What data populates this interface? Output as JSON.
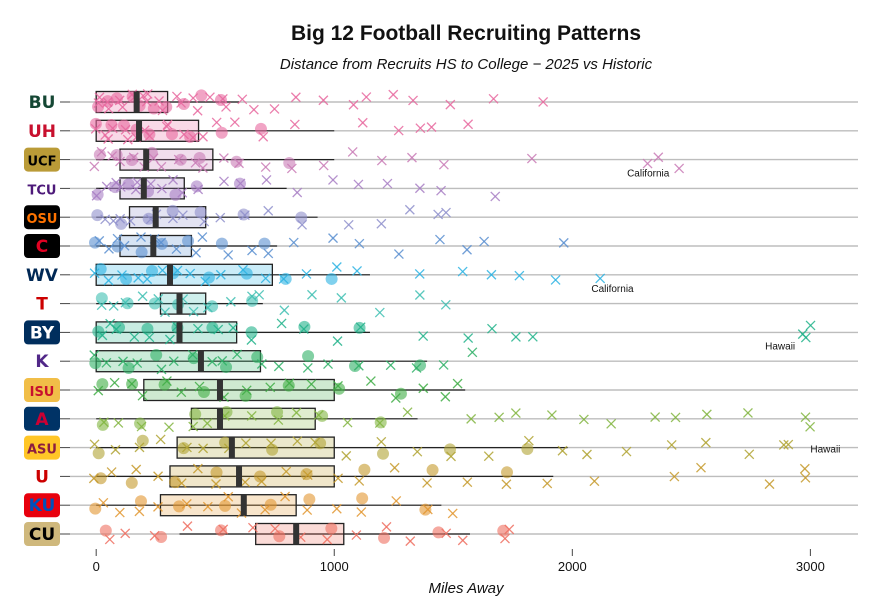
{
  "chart_data": {
    "type": "box",
    "title": "Big 12 Football Recruiting Patterns",
    "subtitle": "Distance from Recruits HS to College − 2025 vs Historic",
    "xlabel": "Miles Away",
    "xlim": [
      -110,
      3200
    ],
    "xticks": [
      0,
      1000,
      2000,
      3000
    ],
    "grid": "horizontal",
    "legend": "none",
    "categories": [
      "Baylor",
      "Houston",
      "UCF",
      "TCU",
      "Oklahoma State",
      "Cincinnati",
      "West Virginia",
      "Texas Tech",
      "BYU",
      "Kansas State",
      "Iowa State",
      "Arizona",
      "Arizona State",
      "Utah",
      "Kansas",
      "Colorado"
    ],
    "series": [
      {
        "color": "#e8689f",
        "logo": {
          "text": "BU",
          "color": "#154734",
          "bg": "#ffffff"
        },
        "box": {
          "min": 0,
          "q1": 0,
          "median": 170,
          "q3": 300,
          "max": 600
        },
        "points": [
          10,
          30,
          50,
          70,
          95,
          120,
          145,
          160,
          190,
          210,
          230,
          260,
          280,
          320,
          360,
          400,
          440,
          480,
          530,
          560
        ],
        "outliers": [
          620,
          680,
          760,
          840,
          950,
          1070,
          1150,
          1250,
          1350,
          1480,
          1650,
          1880
        ]
      },
      {
        "color": "#e8689f",
        "logo": {
          "text": "UH",
          "color": "#c8102e",
          "bg": "#ffffff"
        },
        "box": {
          "min": 0,
          "q1": 0,
          "median": 180,
          "q3": 430,
          "max": 1000
        },
        "points": [
          10,
          30,
          60,
          90,
          120,
          150,
          170,
          200,
          240,
          280,
          320,
          360,
          400,
          460,
          520,
          600,
          700,
          820
        ],
        "outliers": [
          1120,
          1280,
          1380,
          1420,
          1550
        ]
      },
      {
        "color": "#c97bb6",
        "logo": {
          "text": "UCF",
          "color": "#000000",
          "bg": "#ba9b37"
        },
        "box": {
          "min": 0,
          "q1": 100,
          "median": 210,
          "q3": 490,
          "max": 1000
        },
        "points": [
          10,
          40,
          80,
          120,
          160,
          200,
          240,
          290,
          340,
          400,
          450,
          520,
          600,
          700,
          820,
          950
        ],
        "outliers": [
          1080,
          1180,
          1320,
          1450,
          1830,
          2300,
          2380,
          2450
        ],
        "annot": {
          "x": 2230,
          "text": "California"
        }
      },
      {
        "color": "#a87fc4",
        "logo": {
          "text": "TCU",
          "color": "#4d1979",
          "bg": "#ffffff"
        },
        "box": {
          "min": 0,
          "q1": 100,
          "median": 200,
          "q3": 370,
          "max": 800
        },
        "points": [
          10,
          40,
          70,
          110,
          150,
          190,
          230,
          280,
          330,
          380,
          430,
          520,
          610,
          720
        ],
        "outliers": [
          860,
          980,
          1100,
          1230,
          1350,
          1460,
          1660
        ]
      },
      {
        "color": "#8f90cc",
        "logo": {
          "text": "OSU",
          "color": "#ff7300",
          "bg": "#000000"
        },
        "box": {
          "min": 0,
          "q1": 140,
          "median": 250,
          "q3": 460,
          "max": 930
        },
        "points": [
          20,
          60,
          110,
          160,
          210,
          260,
          320,
          380,
          440,
          520,
          620,
          740,
          870
        ],
        "outliers": [
          1050,
          1200,
          1320,
          1420,
          1480
        ]
      },
      {
        "color": "#5a8fd0",
        "logo": {
          "text": "C",
          "color": "#e00122",
          "bg": "#000000"
        },
        "box": {
          "min": 0,
          "q1": 100,
          "median": 240,
          "q3": 400,
          "max": 760
        },
        "points": [
          10,
          50,
          90,
          140,
          190,
          240,
          290,
          340,
          400,
          460,
          540,
          640,
          720
        ],
        "outliers": [
          850,
          990,
          1100,
          1280,
          1440,
          1550,
          1650,
          1980
        ]
      },
      {
        "color": "#2bb3e3",
        "logo": {
          "text": "WV",
          "color": "#002855",
          "bg": "#ffffff"
        },
        "box": {
          "min": 0,
          "q1": 0,
          "median": 310,
          "q3": 740,
          "max": 1150
        },
        "points": [
          10,
          60,
          110,
          160,
          220,
          280,
          330,
          390,
          460,
          540,
          620,
          700,
          800,
          900,
          1000,
          1100
        ],
        "outliers": [
          1380,
          1530,
          1680,
          1780,
          1950,
          2120
        ],
        "annot": {
          "x": 2080,
          "text": "California"
        }
      },
      {
        "color": "#3fbfb3",
        "logo": {
          "text": "T",
          "color": "#cc0000",
          "bg": "#ffffff"
        },
        "box": {
          "min": 0,
          "q1": 270,
          "median": 350,
          "q3": 460,
          "max": 700
        },
        "points": [
          20,
          80,
          140,
          200,
          260,
          310,
          360,
          420,
          480,
          560,
          640,
          700
        ],
        "outliers": [
          780,
          900,
          1050,
          1200,
          1380,
          1480
        ]
      },
      {
        "color": "#22b38b",
        "logo": {
          "text": "BY",
          "color": "#ffffff",
          "bg": "#002e5d"
        },
        "box": {
          "min": 0,
          "q1": 0,
          "median": 350,
          "q3": 590,
          "max": 1150
        },
        "points": [
          10,
          50,
          100,
          160,
          220,
          290,
          350,
          420,
          500,
          580,
          660,
          760,
          880,
          1000,
          1100
        ],
        "outliers": [
          1380,
          1560,
          1660,
          1750,
          1820,
          2960,
          3000,
          2980
        ],
        "annot": {
          "x": 2810,
          "text": "Hawaii"
        }
      },
      {
        "color": "#2eb066",
        "logo": {
          "text": "K",
          "color": "#512888",
          "bg": "#ffffff"
        },
        "box": {
          "min": 0,
          "q1": 0,
          "median": 440,
          "q3": 690,
          "max": 1390
        },
        "points": [
          10,
          60,
          120,
          190,
          260,
          330,
          400,
          470,
          540,
          610,
          690,
          780,
          880,
          980,
          1100,
          1220,
          1350
        ],
        "outliers": [
          1450,
          1560
        ]
      },
      {
        "color": "#3fad45",
        "logo": {
          "text": "ISU",
          "color": "#c8102e",
          "bg": "#f1be48"
        },
        "box": {
          "min": 0,
          "q1": 200,
          "median": 520,
          "q3": 1000,
          "max": 1550
        },
        "points": [
          10,
          70,
          140,
          210,
          290,
          370,
          450,
          540,
          630,
          720,
          820,
          920,
          1020,
          1150,
          1270,
          1380
        ],
        "outliers": [
          1460,
          1530
        ]
      },
      {
        "color": "#82b541",
        "logo": {
          "text": "A",
          "color": "#cc0033",
          "bg": "#003366"
        },
        "box": {
          "min": 0,
          "q1": 400,
          "median": 520,
          "q3": 920,
          "max": 1350
        },
        "points": [
          20,
          110,
          200,
          300,
          400,
          480,
          560,
          650,
          750,
          850,
          950,
          1050,
          1180,
          1300
        ],
        "outliers": [
          1560,
          1680,
          1760,
          1900,
          2040,
          2180,
          2330,
          2420,
          2560,
          2740,
          2980,
          3000
        ]
      },
      {
        "color": "#b0a333",
        "logo": {
          "text": "ASU",
          "color": "#8c1d40",
          "bg": "#ffc627"
        },
        "box": {
          "min": 0,
          "q1": 340,
          "median": 570,
          "q3": 1000,
          "max": 1980
        },
        "points": [
          10,
          90,
          180,
          280,
          370,
          460,
          550,
          640,
          740,
          840,
          940,
          1060,
          1200,
          1350,
          1500,
          1650,
          1800,
          1950
        ],
        "outliers": [
          2080,
          2220,
          2400,
          2560,
          2760,
          2900,
          2920
        ],
        "annot": {
          "x": 3000,
          "text": "Hawaii"
        }
      },
      {
        "color": "#c59a2c",
        "logo": {
          "text": "U",
          "color": "#cc0000",
          "bg": "#ffffff"
        },
        "box": {
          "min": 0,
          "q1": 310,
          "median": 600,
          "q3": 1000,
          "max": 1920
        },
        "points": [
          10,
          80,
          160,
          250,
          340,
          430,
          520,
          610,
          700,
          800,
          900,
          1000,
          1120,
          1260,
          1400,
          1560,
          1720,
          1880
        ],
        "outliers": [
          2080,
          2440,
          2520,
          2830,
          2970,
          3000
        ]
      },
      {
        "color": "#e29630",
        "logo": {
          "text": "KU",
          "color": "#0051ba",
          "bg": "#e8000d"
        },
        "box": {
          "min": 0,
          "q1": 270,
          "median": 620,
          "q3": 840,
          "max": 1450
        },
        "points": [
          10,
          90,
          180,
          270,
          360,
          450,
          540,
          630,
          720,
          810,
          900,
          1000,
          1120,
          1250,
          1380
        ],
        "outliers": [
          1480
        ]
      },
      {
        "color": "#ef6f60",
        "logo": {
          "text": "CU",
          "color": "#000000",
          "bg": "#cfb87c"
        },
        "box": {
          "min": 350,
          "q1": 670,
          "median": 840,
          "q3": 1040,
          "max": 1570
        },
        "points": [
          40,
          140,
          260,
          400,
          520,
          640,
          760,
          880,
          980,
          1080,
          1200,
          1320,
          1450,
          1560,
          1700,
          1750
        ],
        "outliers": []
      }
    ]
  }
}
